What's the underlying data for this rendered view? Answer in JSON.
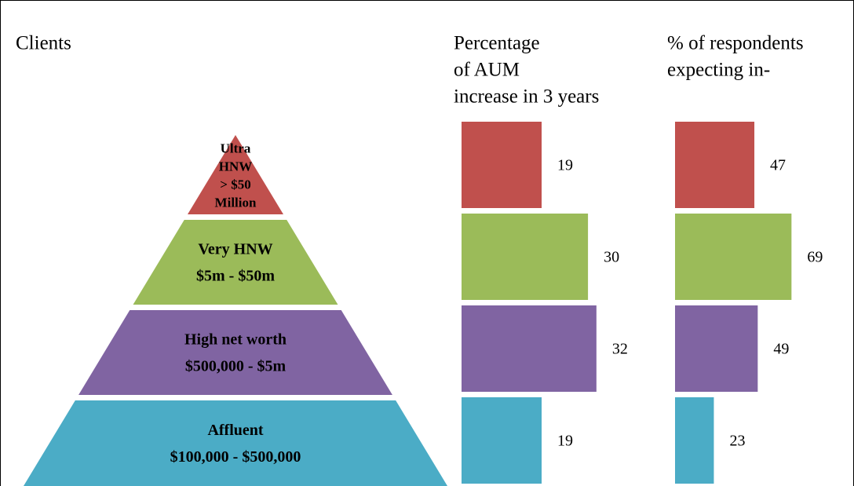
{
  "title": "Clients",
  "tiers": [
    {
      "lines": [
        "Ultra",
        "HNW",
        "> $50",
        "Million"
      ],
      "color": "#c0504d"
    },
    {
      "lines": [
        "Very HNW",
        "$5m - $50m"
      ],
      "color": "#9bbb59"
    },
    {
      "lines": [
        "High net worth",
        "$500,000 - $5m"
      ],
      "color": "#8064a2"
    },
    {
      "lines": [
        "Affluent",
        "$100,000 - $500,000"
      ],
      "color": "#4bacc6"
    }
  ],
  "chart_data": [
    {
      "type": "bar",
      "title": [
        "Percentage",
        "of AUM",
        "increase in 3 years"
      ],
      "values": [
        19,
        30,
        32,
        19
      ],
      "colors": [
        "#c0504d",
        "#9bbb59",
        "#8064a2",
        "#4bacc6"
      ]
    },
    {
      "type": "bar",
      "title": [
        "% of respondents",
        "expecting in-"
      ],
      "values": [
        47,
        69,
        49,
        23
      ],
      "colors": [
        "#c0504d",
        "#9bbb59",
        "#8064a2",
        "#4bacc6"
      ]
    }
  ]
}
